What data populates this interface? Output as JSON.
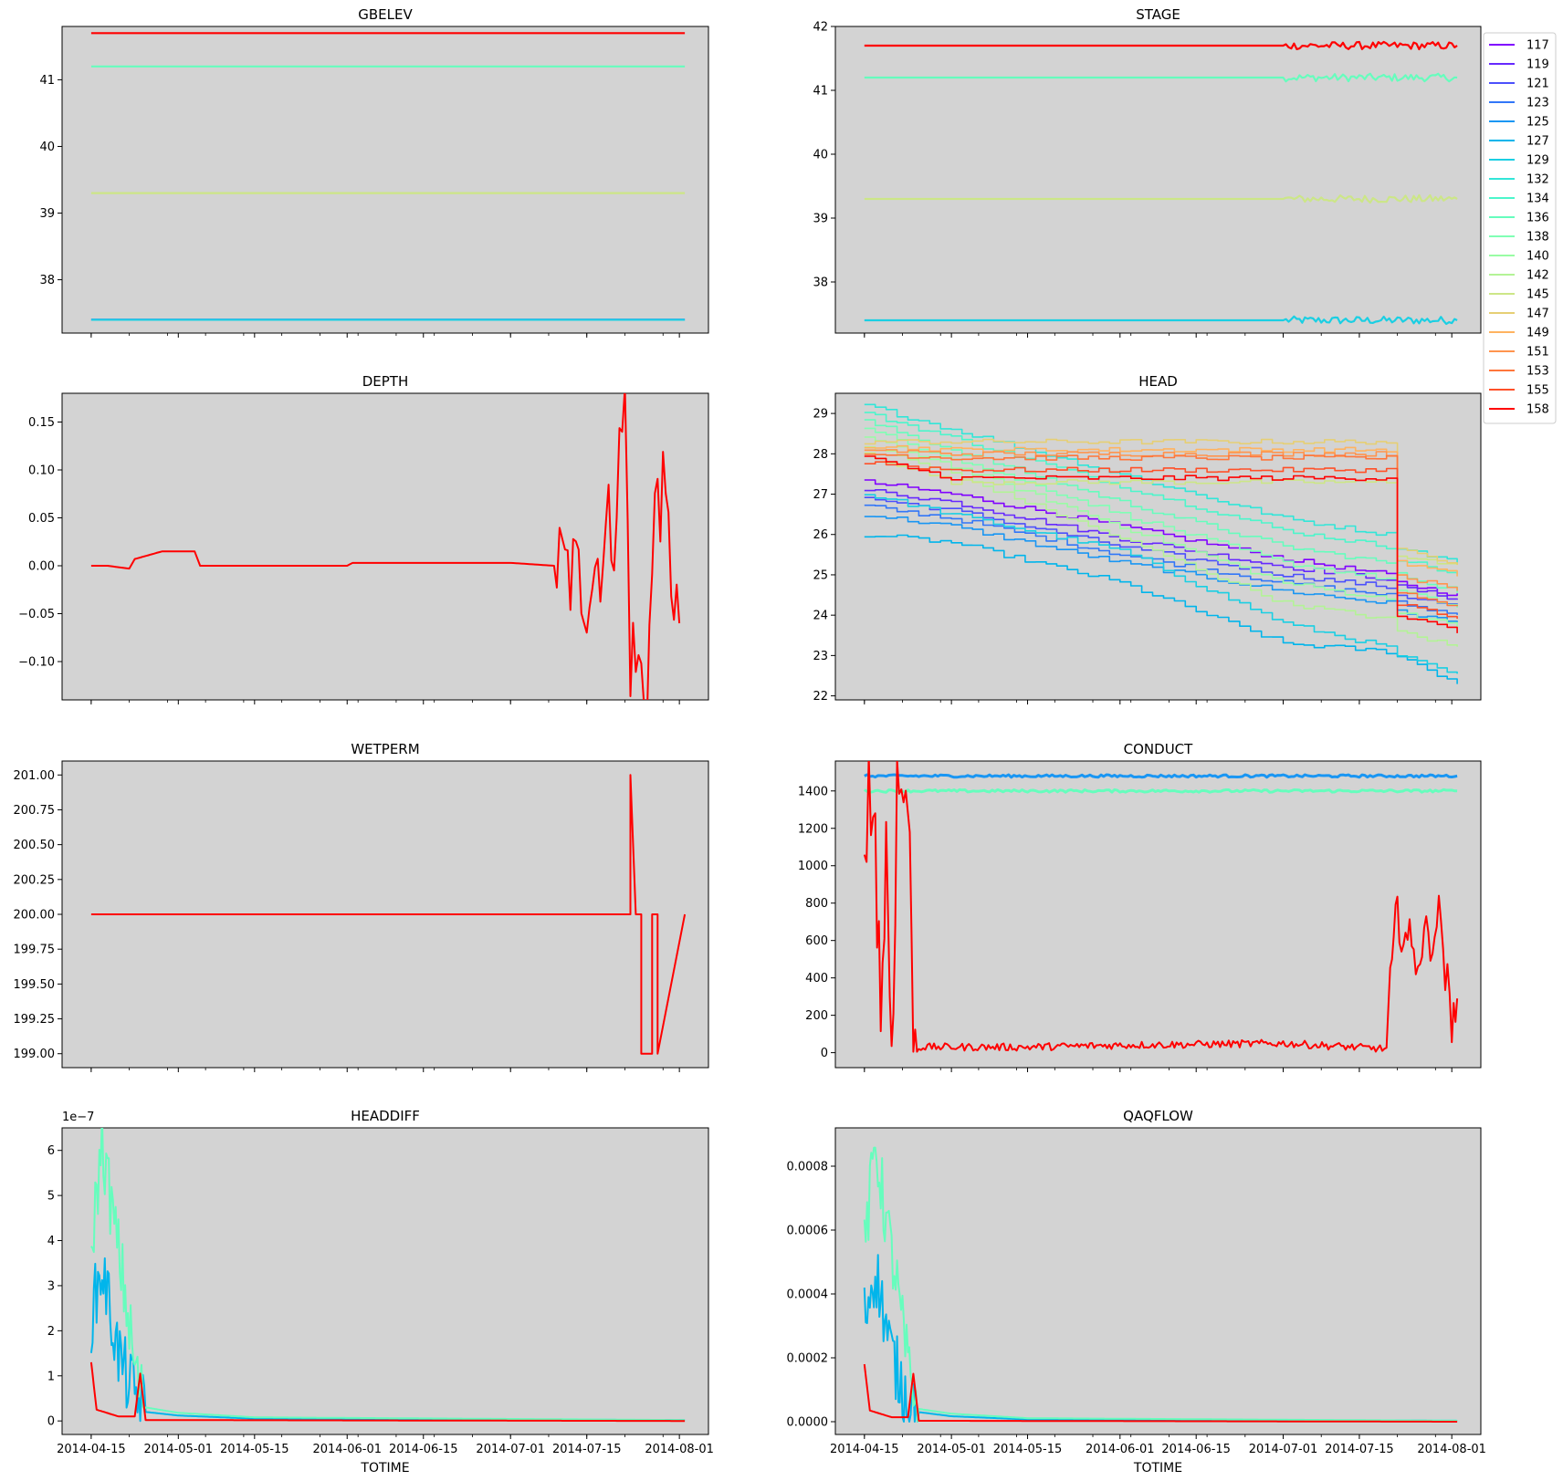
{
  "figure": {
    "background": "#ffffff",
    "axes_facecolor": "#d3d3d3"
  },
  "legend": {
    "placement": "outside upper-right of top-right panel",
    "entries": [
      "117",
      "119",
      "121",
      "123",
      "125",
      "127",
      "129",
      "132",
      "134",
      "136",
      "138",
      "140",
      "142",
      "145",
      "147",
      "149",
      "151",
      "153",
      "155",
      "158"
    ],
    "colors": [
      "#8000ff",
      "#6629fe",
      "#4c50fc",
      "#3276f8",
      "#1996f3",
      "#00b5eb",
      "#1acfe3",
      "#32e6d8",
      "#4cf6cb",
      "#66fdbd",
      "#80ffb4",
      "#99fca4",
      "#b3f396",
      "#cce687",
      "#e6cf74",
      "#ffb360",
      "#ff944e",
      "#ff763b",
      "#ff5028",
      "#ff0000"
    ]
  },
  "chart_data": [
    {
      "type": "line",
      "title": "GBELEV",
      "xlabel": "",
      "ylabel": "",
      "x_ticks": [
        "2014-04-15",
        "2014-05-01",
        "2014-05-15",
        "2014-06-01",
        "2014-06-15",
        "2014-07-01",
        "2014-07-15",
        "2014-08-01"
      ],
      "x_ticks_visible": false,
      "ylim": [
        37.2,
        41.8
      ],
      "y_ticks": [
        "38",
        "39",
        "40",
        "41"
      ],
      "series": [
        {
          "name": "117",
          "values": [
            37.4
          ]
        },
        {
          "name": "129",
          "values": [
            37.4
          ]
        },
        {
          "name": "136",
          "values": [
            41.2
          ]
        },
        {
          "name": "145",
          "values": [
            39.3
          ]
        },
        {
          "name": "158",
          "values": [
            41.7
          ]
        }
      ]
    },
    {
      "type": "line",
      "title": "STAGE",
      "xlabel": "",
      "ylabel": "",
      "x_ticks": [
        "2014-04-15",
        "2014-05-01",
        "2014-05-15",
        "2014-06-01",
        "2014-06-15",
        "2014-07-01",
        "2014-07-15",
        "2014-08-01"
      ],
      "x_ticks_visible": false,
      "ylim": [
        37.2,
        42.0
      ],
      "y_ticks": [
        "38",
        "39",
        "40",
        "41",
        "42"
      ],
      "series": [
        {
          "name": "129",
          "values": [
            37.4
          ]
        },
        {
          "name": "136",
          "values": [
            41.2
          ]
        },
        {
          "name": "145",
          "values": [
            39.3
          ]
        },
        {
          "name": "158",
          "values": [
            41.7
          ]
        }
      ]
    },
    {
      "type": "line",
      "title": "DEPTH",
      "xlabel": "",
      "ylabel": "",
      "x_ticks": [
        "2014-04-15",
        "2014-05-01",
        "2014-05-15",
        "2014-06-01",
        "2014-06-15",
        "2014-07-01",
        "2014-07-15",
        "2014-08-01"
      ],
      "x_ticks_visible": false,
      "ylim": [
        -0.14,
        0.18
      ],
      "y_ticks": [
        "0.15",
        "0.10",
        "0.05",
        "0.00",
        "−0.05",
        "−0.10"
      ],
      "series": [
        {
          "name": "158",
          "x": [
            "2014-04-15",
            "2014-04-18",
            "2014-04-22",
            "2014-04-23",
            "2014-04-28",
            "2014-05-04",
            "2014-05-05",
            "2014-06-01",
            "2014-06-02",
            "2014-07-01",
            "2014-07-09",
            "2014-07-15",
            "2014-07-20",
            "2014-07-22",
            "2014-07-23",
            "2014-07-26",
            "2014-07-28",
            "2014-08-01"
          ],
          "values": [
            0.0,
            0.0,
            -0.003,
            0.007,
            0.015,
            0.015,
            0.0,
            0.0,
            0.003,
            0.003,
            0.0,
            -0.02,
            0.05,
            0.17,
            -0.09,
            -0.13,
            0.1,
            -0.06
          ]
        }
      ]
    },
    {
      "type": "line",
      "title": "HEAD",
      "xlabel": "",
      "ylabel": "",
      "x_ticks": [
        "2014-04-15",
        "2014-05-01",
        "2014-05-15",
        "2014-06-01",
        "2014-06-15",
        "2014-07-01",
        "2014-07-15",
        "2014-08-01"
      ],
      "x_ticks_visible": false,
      "ylim": [
        21.9,
        29.5
      ],
      "y_ticks": [
        "22",
        "23",
        "24",
        "25",
        "26",
        "27",
        "28",
        "29"
      ],
      "series_x": [
        "2014-04-15",
        "2014-05-01",
        "2014-06-01",
        "2014-07-01",
        "2014-07-20",
        "2014-07-22",
        "2014-08-02"
      ],
      "series": [
        {
          "name": "117",
          "values": [
            27.3,
            27.0,
            26.2,
            25.4,
            25.0,
            24.8,
            24.5
          ]
        },
        {
          "name": "119",
          "values": [
            27.1,
            26.8,
            25.9,
            25.2,
            24.9,
            24.7,
            24.4
          ]
        },
        {
          "name": "121",
          "values": [
            26.9,
            26.6,
            25.7,
            25.0,
            24.7,
            24.5,
            24.2
          ]
        },
        {
          "name": "123",
          "values": [
            26.7,
            26.4,
            25.5,
            24.8,
            24.5,
            24.3,
            24.0
          ]
        },
        {
          "name": "125",
          "values": [
            26.5,
            26.2,
            25.3,
            24.6,
            24.3,
            24.1,
            23.8
          ]
        },
        {
          "name": "127",
          "values": [
            26.0,
            25.8,
            24.8,
            23.3,
            23.1,
            23.0,
            22.3
          ]
        },
        {
          "name": "129",
          "values": [
            27.0,
            26.5,
            25.6,
            23.8,
            23.2,
            23.0,
            22.5
          ]
        },
        {
          "name": "132",
          "values": [
            29.2,
            28.6,
            27.5,
            26.4,
            26.0,
            25.7,
            25.3
          ]
        },
        {
          "name": "134",
          "values": [
            29.0,
            28.4,
            27.2,
            26.1,
            25.7,
            25.4,
            25.0
          ]
        },
        {
          "name": "136",
          "values": [
            28.8,
            28.1,
            26.8,
            25.7,
            25.3,
            25.0,
            24.6
          ]
        },
        {
          "name": "138",
          "values": [
            28.6,
            27.9,
            26.5,
            25.3,
            24.9,
            24.6,
            24.2
          ]
        },
        {
          "name": "140",
          "values": [
            28.4,
            27.7,
            26.2,
            24.8,
            24.4,
            24.1,
            23.7
          ]
        },
        {
          "name": "142",
          "values": [
            28.2,
            27.5,
            25.9,
            24.3,
            23.9,
            23.6,
            23.2
          ]
        },
        {
          "name": "145",
          "values": [
            28.0,
            27.3,
            27.3,
            27.3,
            27.3,
            25.5,
            25.2
          ]
        },
        {
          "name": "147",
          "values": [
            28.3,
            28.3,
            28.3,
            28.3,
            28.3,
            25.6,
            25.3
          ]
        },
        {
          "name": "149",
          "values": [
            28.2,
            28.1,
            28.1,
            28.1,
            28.1,
            25.3,
            25.0
          ]
        },
        {
          "name": "151",
          "values": [
            28.1,
            28.0,
            28.0,
            28.0,
            28.0,
            25.0,
            24.6
          ]
        },
        {
          "name": "153",
          "values": [
            28.0,
            27.9,
            27.9,
            27.9,
            27.9,
            24.6,
            24.2
          ]
        },
        {
          "name": "155",
          "values": [
            27.8,
            27.6,
            27.6,
            27.6,
            27.6,
            24.3,
            23.9
          ]
        },
        {
          "name": "158",
          "values": [
            27.9,
            27.4,
            27.4,
            27.4,
            27.4,
            24.0,
            23.6
          ]
        }
      ]
    },
    {
      "type": "line",
      "title": "WETPERM",
      "xlabel": "",
      "ylabel": "",
      "x_ticks": [
        "2014-04-15",
        "2014-05-01",
        "2014-05-15",
        "2014-06-01",
        "2014-06-15",
        "2014-07-01",
        "2014-07-15",
        "2014-08-01"
      ],
      "x_ticks_visible": false,
      "ylim": [
        198.9,
        201.1
      ],
      "y_ticks": [
        "201.00",
        "200.75",
        "200.50",
        "200.25",
        "200.00",
        "199.75",
        "199.50",
        "199.25",
        "199.00"
      ],
      "series": [
        {
          "name": "158",
          "x": [
            "2014-04-15",
            "2014-07-23",
            "2014-07-23",
            "2014-07-24",
            "2014-07-25",
            "2014-07-25",
            "2014-07-27",
            "2014-07-27",
            "2014-07-28",
            "2014-07-28",
            "2014-08-02"
          ],
          "values": [
            200.0,
            200.0,
            201.0,
            200.0,
            200.0,
            199.0,
            199.0,
            200.0,
            200.0,
            199.0,
            200.0
          ]
        }
      ]
    },
    {
      "type": "line",
      "title": "CONDUCT",
      "xlabel": "",
      "ylabel": "",
      "x_ticks": [
        "2014-04-15",
        "2014-05-01",
        "2014-05-15",
        "2014-06-01",
        "2014-06-15",
        "2014-07-01",
        "2014-07-15",
        "2014-08-01"
      ],
      "x_ticks_visible": false,
      "ylim": [
        -80,
        1560
      ],
      "y_ticks": [
        "0",
        "200",
        "400",
        "600",
        "800",
        "1000",
        "1200",
        "1400"
      ],
      "series": [
        {
          "name": "125",
          "values": [
            1480
          ]
        },
        {
          "name": "136",
          "values": [
            1400
          ]
        },
        {
          "name": "158",
          "x": [
            "2014-04-15",
            "2014-04-17",
            "2014-04-18",
            "2014-04-19",
            "2014-04-20",
            "2014-04-21",
            "2014-04-23",
            "2014-04-24",
            "2014-04-25",
            "2014-05-15",
            "2014-06-01",
            "2014-07-01",
            "2014-07-20",
            "2014-07-21",
            "2014-07-22",
            "2014-07-25",
            "2014-07-30",
            "2014-08-01",
            "2014-08-02"
          ],
          "values": [
            1380,
            1250,
            200,
            1100,
            30,
            1400,
            1400,
            20,
            30,
            30,
            40,
            50,
            20,
            380,
            690,
            450,
            660,
            20,
            290
          ]
        }
      ]
    },
    {
      "type": "line",
      "title": "HEADDIFF",
      "xlabel": "TOTIME",
      "ylabel": "",
      "x_ticks": [
        "2014-04-15",
        "2014-05-01",
        "2014-05-15",
        "2014-06-01",
        "2014-06-15",
        "2014-07-01",
        "2014-07-15",
        "2014-08-01"
      ],
      "x_ticks_visible": true,
      "offset_text": "1e−7",
      "ylim": [
        -0.3,
        6.5
      ],
      "y_ticks": [
        "0",
        "1",
        "2",
        "3",
        "4",
        "5",
        "6"
      ],
      "series": [
        {
          "name": "127",
          "x": [
            "2014-04-15",
            "2014-04-17",
            "2014-04-20",
            "2014-04-22",
            "2014-04-25",
            "2014-05-01",
            "2014-05-15",
            "2014-08-02"
          ],
          "values": [
            2.3,
            3.4,
            1.5,
            0.8,
            0.2,
            0.12,
            0.05,
            0.02
          ]
        },
        {
          "name": "136",
          "x": [
            "2014-04-15",
            "2014-04-17",
            "2014-04-19",
            "2014-04-21",
            "2014-04-23",
            "2014-04-25",
            "2014-05-01",
            "2014-05-15",
            "2014-08-02"
          ],
          "values": [
            3.8,
            6.2,
            4.5,
            3.0,
            1.2,
            0.3,
            0.18,
            0.08,
            0.02
          ]
        },
        {
          "name": "158",
          "x": [
            "2014-04-15",
            "2014-04-16",
            "2014-04-20",
            "2014-04-23",
            "2014-04-24",
            "2014-04-25",
            "2014-08-02"
          ],
          "values": [
            1.3,
            0.25,
            0.1,
            0.1,
            1.05,
            0.02,
            0.0
          ]
        }
      ]
    },
    {
      "type": "line",
      "title": "QAQFLOW",
      "xlabel": "TOTIME",
      "ylabel": "",
      "x_ticks": [
        "2014-04-15",
        "2014-05-01",
        "2014-05-15",
        "2014-06-01",
        "2014-06-15",
        "2014-07-01",
        "2014-07-15",
        "2014-08-01"
      ],
      "x_ticks_visible": true,
      "ylim": [
        -4e-05,
        0.00092
      ],
      "y_ticks": [
        "0.0000",
        "0.0002",
        "0.0004",
        "0.0006",
        "0.0008"
      ],
      "series": [
        {
          "name": "127",
          "x": [
            "2014-04-15",
            "2014-04-17",
            "2014-04-20",
            "2014-04-22",
            "2014-04-25",
            "2014-05-01",
            "2014-05-15",
            "2014-08-02"
          ],
          "values": [
            0.00033,
            0.00048,
            0.00021,
            0.00011,
            3e-05,
            1.7e-05,
            7e-06,
            3e-06
          ]
        },
        {
          "name": "136",
          "x": [
            "2014-04-15",
            "2014-04-17",
            "2014-04-19",
            "2014-04-21",
            "2014-04-23",
            "2014-04-25",
            "2014-05-01",
            "2014-05-15",
            "2014-08-02"
          ],
          "values": [
            0.00053,
            0.00087,
            0.00063,
            0.00042,
            0.00017,
            4e-05,
            2.5e-05,
            1.1e-05,
            3e-06
          ]
        },
        {
          "name": "158",
          "x": [
            "2014-04-15",
            "2014-04-16",
            "2014-04-20",
            "2014-04-23",
            "2014-04-24",
            "2014-04-25",
            "2014-08-02"
          ],
          "values": [
            0.00018,
            3.5e-05,
            1.4e-05,
            1.4e-05,
            0.00015,
            3e-06,
            0.0
          ]
        }
      ]
    }
  ]
}
